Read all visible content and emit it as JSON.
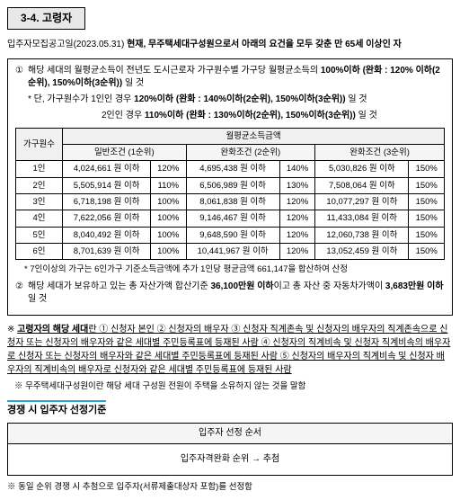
{
  "section": {
    "number": "3-4.",
    "title": "고령자"
  },
  "subtitle": {
    "prefix": "입주자모집공고일(2023.05.31)",
    "main": "현재, 무주택세대구성원으로서 아래의 요건을 모두 갖춘 만 65세 이상인 자"
  },
  "item1": {
    "circled": "①",
    "text1": "해당 세대의 월평균소득이 전년도 도시근로자 가구원수별 가구당 월평균소득의",
    "bold1": "100%이하 (완화 : 120%",
    "text2": "이하(2순위), 150%이하(3순위))",
    "text3": "일 것",
    "sub1": "* 단, 가구원수가 1인인 경우",
    "sub1bold": "120%이하 (완화 : 140%이하(2순위), 150%이하(3순위))",
    "sub1tail": "일 것",
    "sub2": "2인인 경우",
    "sub2bold": "110%이하 (완화 : 130%이하(2순위), 150%이하(3순위))",
    "sub2tail": "일 것"
  },
  "table": {
    "header_main": "월평균소득금액",
    "col_household": "가구원수",
    "col1": "일반조건 (1순위)",
    "col2": "완화조건 (2순위)",
    "col3": "완화조건 (3순위)",
    "rows": [
      {
        "h": "1인",
        "a": "4,024,661 원 이하",
        "ap": "120%",
        "b": "4,695,438 원 이하",
        "bp": "140%",
        "c": "5,030,826 원 이하",
        "cp": "150%"
      },
      {
        "h": "2인",
        "a": "5,505,914 원 이하",
        "ap": "110%",
        "b": "6,506,989 원 이하",
        "bp": "130%",
        "c": "7,508,064 원 이하",
        "cp": "150%"
      },
      {
        "h": "3인",
        "a": "6,718,198 원 이하",
        "ap": "100%",
        "b": "8,061,838 원 이하",
        "bp": "120%",
        "c": "10,077,297 원 이하",
        "cp": "150%"
      },
      {
        "h": "4인",
        "a": "7,622,056 원 이하",
        "ap": "100%",
        "b": "9,146,467 원 이하",
        "bp": "120%",
        "c": "11,433,084 원 이하",
        "cp": "150%"
      },
      {
        "h": "5인",
        "a": "8,040,492 원 이하",
        "ap": "100%",
        "b": "9,648,590 원 이하",
        "bp": "120%",
        "c": "12,060,738 원 이하",
        "cp": "150%"
      },
      {
        "h": "6인",
        "a": "8,701,639 원 이하",
        "ap": "100%",
        "b": "10,441,967 원 이하",
        "bp": "120%",
        "c": "13,052,459 원 이하",
        "cp": "150%"
      }
    ],
    "footnote": "* 7인이상의 가구는 6인가구 기준소득금액에 추가 1인당 평균금액 661,147을 합산하여 산정"
  },
  "item2": {
    "circled": "②",
    "text1": "해당 세대가 보유하고 있는 총 자산가액 합산기준",
    "bold1": "36,100만원 이하",
    "text2": "이고 총 자산 중 자동차가액이",
    "bold2": "3,683만원 이하",
    "text3": "일 것"
  },
  "definition": {
    "lead": "※",
    "boldlead": "고령자의 해당 세대",
    "text": "란 ① 신청자 본인 ② 신청자의 배우자 ③ 신청자 직계존속 및 신청자의 배우자의 직계존속으로 신청자 또는 신청자의 배우자와 같은 세대별 주민등록표에 등재된 사람 ④ 신청자의 직계비속 및 신청자 직계비속의 배우자로 신청자 또는 신청자의 배우자와 같은 세대별 주민등록표에 등재된 사람 ⑤ 신청자의 배우자의 직계비속 및 신청자 배우자의 직계비속의 배우자로 신청자와 같은 세대별 주민등록표에 등재된 사람"
  },
  "star_note2": "※ 무주택세대구성원이란 해당 세대 구성원 전원이 주택을 소유하지 않는 것을 말함",
  "section2_title": "경쟁 시 입주자 선정기준",
  "order": {
    "header": "입주자 선정 순서",
    "body": "입주자격완화 순위 → 추첨"
  },
  "bottom": "※ 동일 순위 경쟁 시 추첨으로 입주자(서류제출대상자 포함)를 선정함"
}
